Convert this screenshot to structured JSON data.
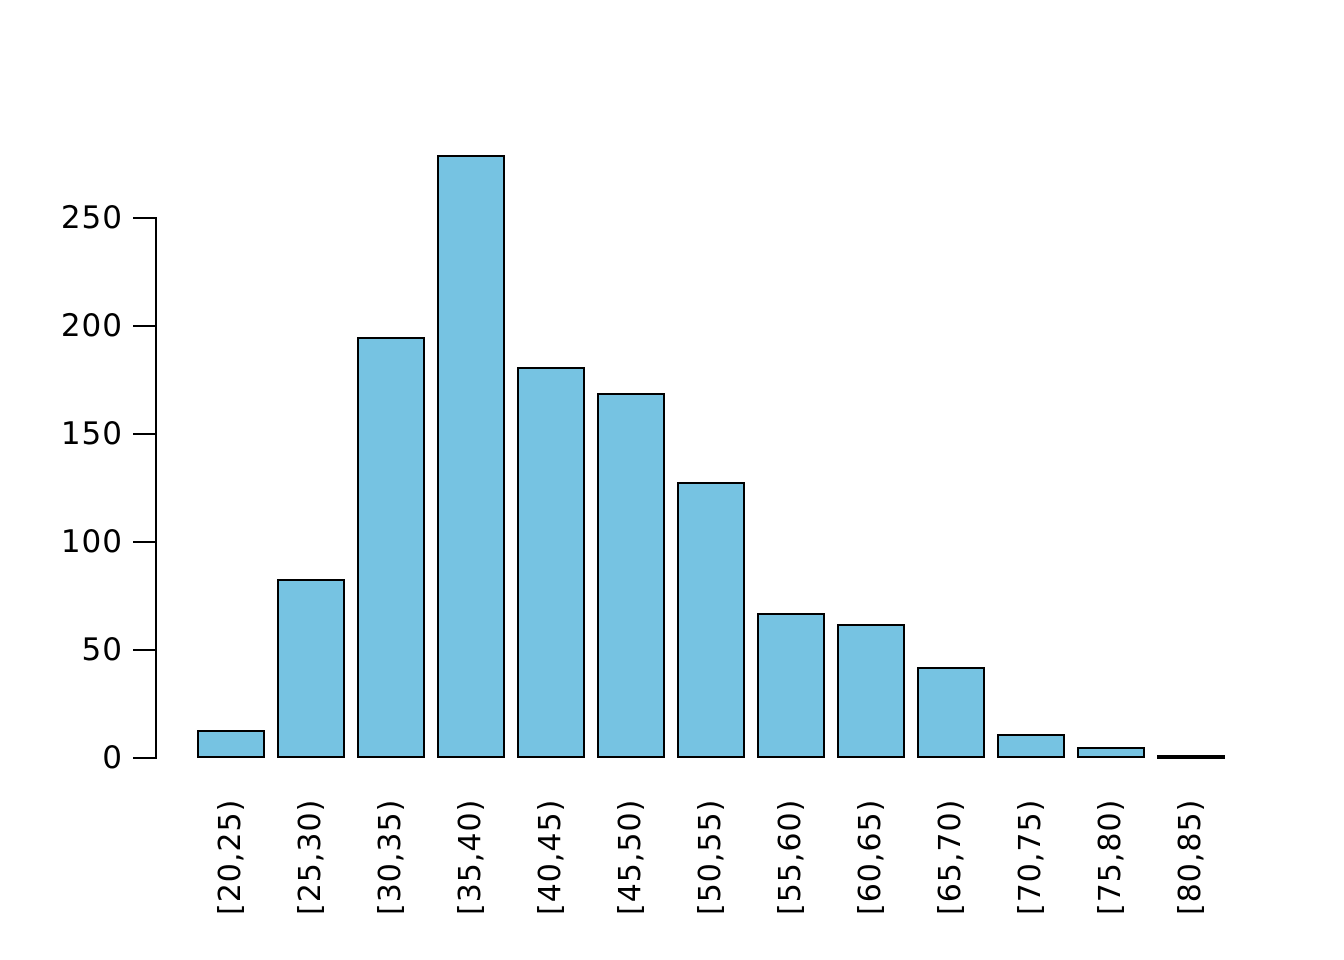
{
  "chart_data": {
    "type": "bar",
    "subtype": "histogram",
    "title": "",
    "xlabel": "",
    "ylabel": "",
    "categories": [
      "[20,25)",
      "[25,30)",
      "[30,35)",
      "[35,40)",
      "[40,45)",
      "[45,50)",
      "[50,55)",
      "[55,60)",
      "[60,65)",
      "[65,70)",
      "[70,75)",
      "[75,80)",
      "[80,85)"
    ],
    "values": [
      13,
      83,
      195,
      279,
      181,
      169,
      128,
      67,
      62,
      42,
      11,
      5,
      1
    ],
    "ylim": [
      0,
      250
    ],
    "yticks": [
      0,
      50,
      100,
      150,
      200,
      250
    ],
    "grid": false,
    "legend_position": "none",
    "bar_fill_color": "#76C3E2",
    "bar_stroke_color": "#000000",
    "axis_color": "#000000",
    "text_color": "#000000",
    "background_color": "#ffffff"
  }
}
